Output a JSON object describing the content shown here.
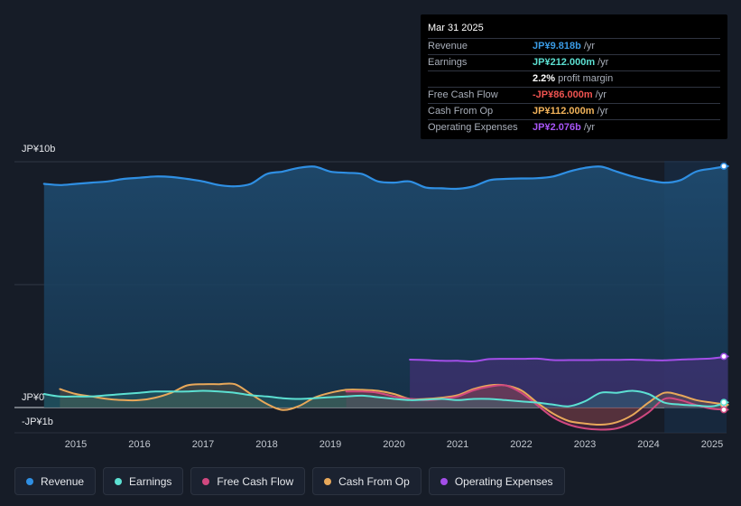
{
  "tooltip": {
    "date": "Mar 31 2025",
    "rows": [
      {
        "label": "Revenue",
        "value": "JP¥9.818b",
        "unit": "/yr",
        "color": "#3a9be5"
      },
      {
        "label": "Earnings",
        "value": "JP¥212.000m",
        "unit": "/yr",
        "color": "#5ce0d2"
      },
      {
        "label": "",
        "value": "2.2%",
        "unit": "profit margin",
        "color": "#ffffff"
      },
      {
        "label": "Free Cash Flow",
        "value": "-JP¥86.000m",
        "unit": "/yr",
        "color": "#ef5350"
      },
      {
        "label": "Cash From Op",
        "value": "JP¥112.000m",
        "unit": "/yr",
        "color": "#f2b35a"
      },
      {
        "label": "Operating Expenses",
        "value": "JP¥2.076b",
        "unit": "/yr",
        "color": "#a855f7"
      }
    ]
  },
  "legend": [
    {
      "label": "Revenue",
      "color": "#2f8fe3"
    },
    {
      "label": "Earnings",
      "color": "#5ce0d2"
    },
    {
      "label": "Free Cash Flow",
      "color": "#d0487f"
    },
    {
      "label": "Cash From Op",
      "color": "#e8a85a"
    },
    {
      "label": "Operating Expenses",
      "color": "#a34ee8"
    }
  ],
  "chart_data": {
    "type": "line",
    "y_axis_labels": [
      "JP¥10b",
      "JP¥0",
      "-JP¥1b"
    ],
    "ylim": [
      -1,
      10
    ],
    "x_ticks": [
      "2015",
      "2016",
      "2017",
      "2018",
      "2019",
      "2020",
      "2021",
      "2022",
      "2023",
      "2024",
      "2025"
    ],
    "x_tick_values": [
      2015,
      2016,
      2017,
      2018,
      2019,
      2020,
      2021,
      2022,
      2023,
      2024,
      2025
    ],
    "xlim": [
      2014.0,
      2025.25
    ],
    "forecast_start": 2024.25,
    "units": "JP¥ billions",
    "series": [
      {
        "name": "Revenue",
        "color": "#2f8fe3",
        "points": [
          [
            2014.5,
            9.1
          ],
          [
            2014.75,
            9.05
          ],
          [
            2015.0,
            9.1
          ],
          [
            2015.25,
            9.15
          ],
          [
            2015.5,
            9.2
          ],
          [
            2015.75,
            9.3
          ],
          [
            2016.0,
            9.35
          ],
          [
            2016.25,
            9.4
          ],
          [
            2016.5,
            9.38
          ],
          [
            2016.75,
            9.3
          ],
          [
            2017.0,
            9.2
          ],
          [
            2017.25,
            9.05
          ],
          [
            2017.5,
            9.0
          ],
          [
            2017.75,
            9.1
          ],
          [
            2018.0,
            9.5
          ],
          [
            2018.25,
            9.6
          ],
          [
            2018.5,
            9.75
          ],
          [
            2018.75,
            9.8
          ],
          [
            2019.0,
            9.6
          ],
          [
            2019.25,
            9.55
          ],
          [
            2019.5,
            9.5
          ],
          [
            2019.75,
            9.2
          ],
          [
            2020.0,
            9.15
          ],
          [
            2020.25,
            9.2
          ],
          [
            2020.5,
            8.95
          ],
          [
            2020.75,
            8.92
          ],
          [
            2021.0,
            8.9
          ],
          [
            2021.25,
            9.0
          ],
          [
            2021.5,
            9.25
          ],
          [
            2021.75,
            9.3
          ],
          [
            2022.0,
            9.32
          ],
          [
            2022.25,
            9.33
          ],
          [
            2022.5,
            9.4
          ],
          [
            2022.75,
            9.6
          ],
          [
            2023.0,
            9.75
          ],
          [
            2023.25,
            9.8
          ],
          [
            2023.5,
            9.6
          ],
          [
            2023.75,
            9.4
          ],
          [
            2024.0,
            9.25
          ],
          [
            2024.25,
            9.15
          ],
          [
            2024.5,
            9.25
          ],
          [
            2024.75,
            9.6
          ],
          [
            2025.0,
            9.72
          ],
          [
            2025.25,
            9.82
          ]
        ]
      },
      {
        "name": "Earnings",
        "color": "#5ce0d2",
        "points": [
          [
            2014.5,
            0.55
          ],
          [
            2014.75,
            0.45
          ],
          [
            2015.0,
            0.45
          ],
          [
            2015.25,
            0.45
          ],
          [
            2015.5,
            0.5
          ],
          [
            2015.75,
            0.55
          ],
          [
            2016.0,
            0.6
          ],
          [
            2016.25,
            0.65
          ],
          [
            2016.5,
            0.65
          ],
          [
            2016.75,
            0.65
          ],
          [
            2017.0,
            0.68
          ],
          [
            2017.25,
            0.65
          ],
          [
            2017.5,
            0.6
          ],
          [
            2017.75,
            0.5
          ],
          [
            2018.0,
            0.45
          ],
          [
            2018.25,
            0.38
          ],
          [
            2018.5,
            0.35
          ],
          [
            2018.75,
            0.38
          ],
          [
            2019.0,
            0.42
          ],
          [
            2019.25,
            0.45
          ],
          [
            2019.5,
            0.48
          ],
          [
            2019.75,
            0.42
          ],
          [
            2020.0,
            0.35
          ],
          [
            2020.25,
            0.3
          ],
          [
            2020.5,
            0.32
          ],
          [
            2020.75,
            0.35
          ],
          [
            2021.0,
            0.3
          ],
          [
            2021.25,
            0.35
          ],
          [
            2021.5,
            0.35
          ],
          [
            2021.75,
            0.3
          ],
          [
            2022.0,
            0.25
          ],
          [
            2022.25,
            0.2
          ],
          [
            2022.5,
            0.12
          ],
          [
            2022.75,
            0.05
          ],
          [
            2023.0,
            0.25
          ],
          [
            2023.25,
            0.6
          ],
          [
            2023.5,
            0.6
          ],
          [
            2023.75,
            0.68
          ],
          [
            2024.0,
            0.55
          ],
          [
            2024.25,
            0.2
          ],
          [
            2024.5,
            0.12
          ],
          [
            2024.75,
            0.08
          ],
          [
            2025.0,
            0.05
          ],
          [
            2025.25,
            0.21
          ]
        ]
      },
      {
        "name": "Free Cash Flow",
        "color": "#d0487f",
        "points": [
          [
            2019.25,
            0.65
          ],
          [
            2019.5,
            0.65
          ],
          [
            2019.75,
            0.6
          ],
          [
            2020.0,
            0.45
          ],
          [
            2020.25,
            0.35
          ],
          [
            2020.5,
            0.3
          ],
          [
            2020.75,
            0.35
          ],
          [
            2021.0,
            0.45
          ],
          [
            2021.25,
            0.7
          ],
          [
            2021.5,
            0.85
          ],
          [
            2021.75,
            0.9
          ],
          [
            2022.0,
            0.6
          ],
          [
            2022.25,
            0.1
          ],
          [
            2022.5,
            -0.4
          ],
          [
            2022.75,
            -0.7
          ],
          [
            2023.0,
            -0.85
          ],
          [
            2023.25,
            -0.9
          ],
          [
            2023.5,
            -0.85
          ],
          [
            2023.75,
            -0.6
          ],
          [
            2024.0,
            -0.2
          ],
          [
            2024.25,
            0.35
          ],
          [
            2024.5,
            0.3
          ],
          [
            2024.75,
            0.1
          ],
          [
            2025.0,
            -0.05
          ],
          [
            2025.25,
            -0.09
          ]
        ]
      },
      {
        "name": "Cash From Op",
        "color": "#e8a85a",
        "points": [
          [
            2014.75,
            0.75
          ],
          [
            2015.0,
            0.55
          ],
          [
            2015.25,
            0.45
          ],
          [
            2015.5,
            0.35
          ],
          [
            2015.75,
            0.3
          ],
          [
            2016.0,
            0.3
          ],
          [
            2016.25,
            0.4
          ],
          [
            2016.5,
            0.6
          ],
          [
            2016.75,
            0.9
          ],
          [
            2017.0,
            0.95
          ],
          [
            2017.25,
            0.95
          ],
          [
            2017.5,
            0.95
          ],
          [
            2017.75,
            0.55
          ],
          [
            2018.0,
            0.15
          ],
          [
            2018.25,
            -0.1
          ],
          [
            2018.5,
            0.05
          ],
          [
            2018.75,
            0.4
          ],
          [
            2019.0,
            0.6
          ],
          [
            2019.25,
            0.72
          ],
          [
            2019.5,
            0.72
          ],
          [
            2019.75,
            0.68
          ],
          [
            2020.0,
            0.55
          ],
          [
            2020.25,
            0.35
          ],
          [
            2020.5,
            0.35
          ],
          [
            2020.75,
            0.4
          ],
          [
            2021.0,
            0.5
          ],
          [
            2021.25,
            0.75
          ],
          [
            2021.5,
            0.9
          ],
          [
            2021.75,
            0.9
          ],
          [
            2022.0,
            0.7
          ],
          [
            2022.25,
            0.2
          ],
          [
            2022.5,
            -0.25
          ],
          [
            2022.75,
            -0.55
          ],
          [
            2023.0,
            -0.65
          ],
          [
            2023.25,
            -0.7
          ],
          [
            2023.5,
            -0.6
          ],
          [
            2023.75,
            -0.3
          ],
          [
            2024.0,
            0.2
          ],
          [
            2024.25,
            0.6
          ],
          [
            2024.5,
            0.5
          ],
          [
            2024.75,
            0.3
          ],
          [
            2025.0,
            0.2
          ],
          [
            2025.25,
            0.11
          ]
        ]
      },
      {
        "name": "Operating Expenses",
        "color": "#a34ee8",
        "points": [
          [
            2020.25,
            1.95
          ],
          [
            2020.5,
            1.93
          ],
          [
            2020.75,
            1.9
          ],
          [
            2021.0,
            1.9
          ],
          [
            2021.25,
            1.88
          ],
          [
            2021.5,
            1.97
          ],
          [
            2021.75,
            1.98
          ],
          [
            2022.0,
            1.98
          ],
          [
            2022.25,
            1.99
          ],
          [
            2022.5,
            1.93
          ],
          [
            2022.75,
            1.93
          ],
          [
            2023.0,
            1.93
          ],
          [
            2023.25,
            1.94
          ],
          [
            2023.5,
            1.94
          ],
          [
            2023.75,
            1.95
          ],
          [
            2024.0,
            1.93
          ],
          [
            2024.25,
            1.92
          ],
          [
            2024.5,
            1.95
          ],
          [
            2024.75,
            1.97
          ],
          [
            2025.0,
            2.0
          ],
          [
            2025.25,
            2.08
          ]
        ]
      }
    ]
  }
}
